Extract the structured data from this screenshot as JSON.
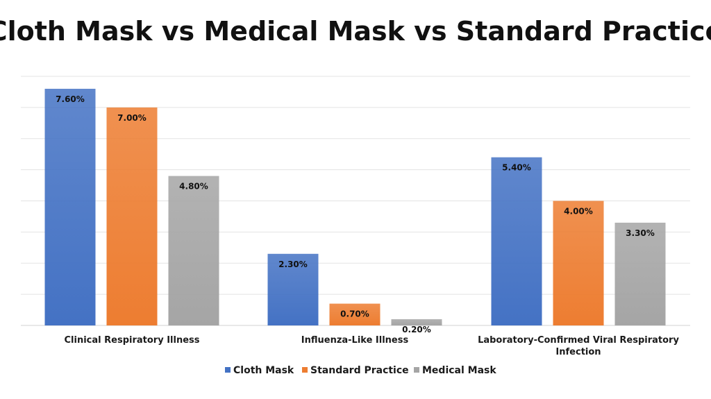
{
  "chart_data": {
    "type": "bar",
    "title": "Cloth Mask vs Medical Mask vs Standard Practice",
    "categories": [
      [
        "Clinical Respiratory Illness"
      ],
      [
        "Influenza-Like Illness"
      ],
      [
        "Laboratory-Confirmed Viral Respiratory",
        "Infection"
      ]
    ],
    "series": [
      {
        "name": "Cloth Mask",
        "color": "#4472C4",
        "values": [
          7.6,
          2.3,
          5.4
        ],
        "labels": [
          "7.60%",
          "2.30%",
          "5.40%"
        ]
      },
      {
        "name": "Standard Practice",
        "color": "#ED7D31",
        "values": [
          7.0,
          0.7,
          4.0
        ],
        "labels": [
          "7.00%",
          "0.70%",
          "4.00%"
        ]
      },
      {
        "name": "Medical Mask",
        "color": "#A5A5A5",
        "values": [
          4.8,
          0.2,
          3.3
        ],
        "labels": [
          "4.80%",
          "0.20%",
          "3.30%"
        ]
      }
    ],
    "ylim": [
      0,
      8
    ],
    "gridlines": true,
    "legend_position": "bottom"
  }
}
